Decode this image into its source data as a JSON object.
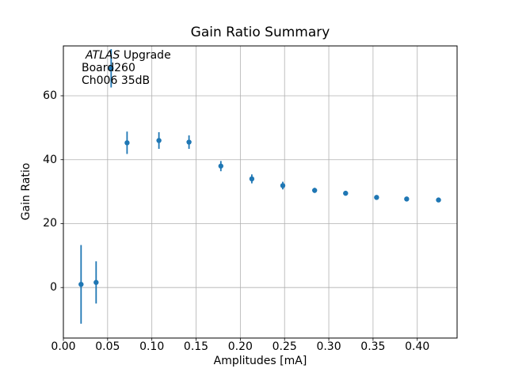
{
  "figure": {
    "title": "Gain Ratio Summary",
    "xlabel": "Amplitudes [mA]",
    "ylabel": "Gain Ratio"
  },
  "annotation": {
    "line1_italic": "ATLAS",
    "line1_rest": " Upgrade",
    "line2": "Board260",
    "line3": "Ch006 35dB"
  },
  "colors": {
    "series": "#1f77b4",
    "grid": "#b0b0b0",
    "spine": "#000000",
    "text": "#000000",
    "background": "#ffffff"
  },
  "chart_data": {
    "type": "scatter",
    "marker": "circle",
    "error_bars": "y",
    "legend": "none",
    "grid": true,
    "title": "Gain Ratio Summary",
    "xlabel": "Amplitudes [mA]",
    "ylabel": "Gain Ratio",
    "xlim": [
      0.0,
      0.445
    ],
    "ylim": [
      -15.8,
      75.6
    ],
    "xticks": [
      0.0,
      0.05,
      0.1,
      0.15,
      0.2,
      0.25,
      0.3,
      0.35,
      0.4
    ],
    "xtick_labels": [
      "0.00",
      "0.05",
      "0.10",
      "0.15",
      "0.20",
      "0.25",
      "0.30",
      "0.35",
      "0.40"
    ],
    "yticks": [
      0,
      20,
      40,
      60
    ],
    "ytick_labels": [
      "0",
      "20",
      "40",
      "60"
    ],
    "points": [
      {
        "x": 0.02,
        "y": 1.0,
        "yerr": 12.3
      },
      {
        "x": 0.037,
        "y": 1.6,
        "yerr": 6.6
      },
      {
        "x": 0.054,
        "y": 68.6,
        "yerr": 6.0
      },
      {
        "x": 0.072,
        "y": 45.3,
        "yerr": 3.5
      },
      {
        "x": 0.108,
        "y": 46.0,
        "yerr": 2.6
      },
      {
        "x": 0.142,
        "y": 45.5,
        "yerr": 2.1
      },
      {
        "x": 0.178,
        "y": 38.0,
        "yerr": 1.6
      },
      {
        "x": 0.213,
        "y": 34.0,
        "yerr": 1.4
      },
      {
        "x": 0.248,
        "y": 31.9,
        "yerr": 1.2
      },
      {
        "x": 0.284,
        "y": 30.4,
        "yerr": 0.8
      },
      {
        "x": 0.319,
        "y": 29.5,
        "yerr": 0.7
      },
      {
        "x": 0.354,
        "y": 28.2,
        "yerr": 0.6
      },
      {
        "x": 0.388,
        "y": 27.7,
        "yerr": 0.5
      },
      {
        "x": 0.424,
        "y": 27.4,
        "yerr": 0.5
      }
    ]
  }
}
